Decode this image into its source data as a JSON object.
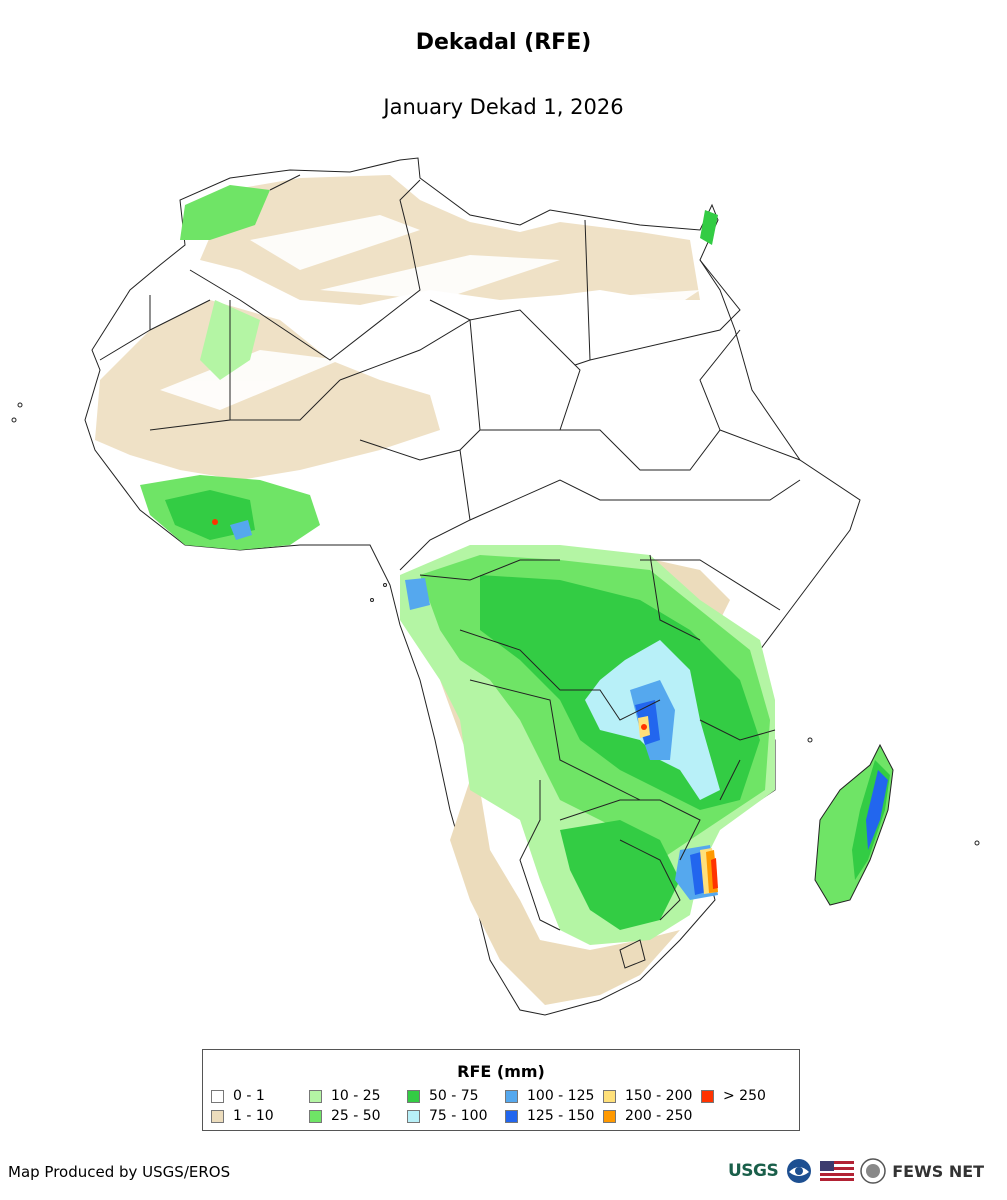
{
  "title": "Dekadal (RFE)",
  "subtitle": "January Dekad 1, 2026",
  "legend": {
    "title": "RFE (mm)",
    "items": [
      {
        "label": "0 - 1",
        "color": "#ffffff"
      },
      {
        "label": "10 - 25",
        "color": "#b4f5a4"
      },
      {
        "label": "50 - 75",
        "color": "#33cc44"
      },
      {
        "label": "100 - 125",
        "color": "#55a8ee"
      },
      {
        "label": "150 - 200",
        "color": "#ffe07a"
      },
      {
        "label": "> 250",
        "color": "#ff3300"
      },
      {
        "label": "1 - 10",
        "color": "#ecdcbc"
      },
      {
        "label": "25 - 50",
        "color": "#6fe466"
      },
      {
        "label": "75 - 100",
        "color": "#b8f0f8"
      },
      {
        "label": "125 - 150",
        "color": "#2266ee"
      },
      {
        "label": "200 - 250",
        "color": "#ff9900"
      }
    ]
  },
  "credit": "Map Produced by USGS/EROS",
  "logos": {
    "usgs": "USGS",
    "fewsnet": "FEWS NET"
  },
  "icons": [
    "usgs-logo",
    "noaa-logo",
    "us-flag-icon",
    "state-department-seal",
    "fewsnet-logo"
  ]
}
